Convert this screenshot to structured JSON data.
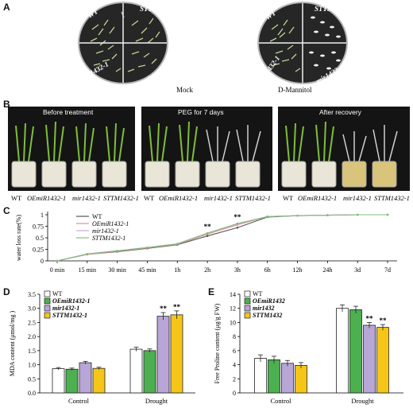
{
  "panel_a": {
    "letter": "A",
    "plates": [
      {
        "condition": "Mock",
        "labels": [
          "WT",
          "STTM1432-1",
          "OEmiR1432-1",
          "mir1432-1"
        ]
      },
      {
        "condition": "D-Mannitol",
        "labels": [
          "WT",
          "STTM1432-1",
          "OEmiR1432-1",
          "mir1432-1"
        ]
      }
    ]
  },
  "panel_b": {
    "letter": "B",
    "photos": [
      {
        "title": "Before treatment",
        "labels": [
          "WT",
          "OEmiR1432-1",
          "mir1432-1",
          "STTM1432-1"
        ]
      },
      {
        "title": "PEG for 7 days",
        "labels": [
          "WT",
          "OEmiR1432-1",
          "mir1432-1",
          "STTM1432-1"
        ]
      },
      {
        "title": "After recovery",
        "labels": [
          "WT",
          "OEmiR1432-1",
          "mir1432-1",
          "STTM1432-1"
        ]
      }
    ]
  },
  "chart_data": [
    {
      "panel": "C",
      "type": "line",
      "ylabel": "water loss rate(%)",
      "xlabel": "",
      "categories": [
        "0 min",
        "15 min",
        "30 min",
        "45 min",
        "1h",
        "2h",
        "3h",
        "6h",
        "12h",
        "24h",
        "3d",
        "7d"
      ],
      "ylim": [
        0,
        1
      ],
      "yticks": [
        "0",
        "0.25",
        "0.5",
        "0.75",
        "1"
      ],
      "series": [
        {
          "name": "WT",
          "color": "#555555",
          "values": [
            0,
            0.14,
            0.2,
            0.27,
            0.35,
            0.54,
            0.72,
            0.95,
            0.98,
            0.99,
            1.0,
            1.0
          ]
        },
        {
          "name": "OEmiR1432-1",
          "color": "#e58f8f",
          "values": [
            0,
            0.14,
            0.21,
            0.28,
            0.36,
            0.58,
            0.78,
            0.96,
            0.98,
            0.99,
            1.0,
            1.0
          ]
        },
        {
          "name": "mir1432-1",
          "color": "#c9a6d8",
          "values": [
            0,
            0.15,
            0.22,
            0.29,
            0.37,
            0.6,
            0.8,
            0.96,
            0.98,
            0.99,
            1.0,
            1.0
          ]
        },
        {
          "name": "STTM1432-1",
          "color": "#7fbf7f",
          "values": [
            0,
            0.15,
            0.22,
            0.29,
            0.37,
            0.6,
            0.81,
            0.96,
            0.98,
            0.99,
            1.0,
            1.0
          ]
        }
      ],
      "annotations": [
        {
          "category": "2h",
          "text": "**"
        },
        {
          "category": "3h",
          "text": "**"
        }
      ]
    },
    {
      "panel": "D",
      "type": "bar",
      "ylabel": "MDA content (μmol/mg )",
      "categories": [
        "Control",
        "Drought"
      ],
      "ylim": [
        0,
        3.5
      ],
      "yticks": [
        "0.0",
        "0.5",
        "1.0",
        "1.5",
        "2.0",
        "2.5",
        "3.0",
        "3.5"
      ],
      "series": [
        {
          "name": "WT",
          "color": "#ffffff",
          "values": [
            0.86,
            1.55
          ],
          "errors": [
            0.04,
            0.07
          ]
        },
        {
          "name": "OEmiR1432-1",
          "color": "#4caf50",
          "values": [
            0.84,
            1.5
          ],
          "errors": [
            0.04,
            0.06
          ]
        },
        {
          "name": "mir1432-1",
          "color": "#b7a6d6",
          "values": [
            1.07,
            2.72
          ],
          "errors": [
            0.05,
            0.13
          ]
        },
        {
          "name": "STTM1432-1",
          "color": "#f5c518",
          "values": [
            0.87,
            2.77
          ],
          "errors": [
            0.04,
            0.14
          ]
        }
      ],
      "significance": [
        {
          "category": "Drought",
          "series": 2,
          "text": "**"
        },
        {
          "category": "Drought",
          "series": 3,
          "text": "**"
        }
      ]
    },
    {
      "panel": "E",
      "type": "bar",
      "ylabel": "Free Proline content (μg/g  FW)",
      "categories": [
        "Control",
        "Drought"
      ],
      "ylim": [
        0,
        14
      ],
      "yticks": [
        "0",
        "2",
        "4",
        "6",
        "8",
        "10",
        "12",
        "14"
      ],
      "series": [
        {
          "name": "WT",
          "color": "#ffffff",
          "values": [
            4.9,
            12.0
          ],
          "errors": [
            0.5,
            0.5
          ]
        },
        {
          "name": "OEmiR1432",
          "color": "#4caf50",
          "values": [
            4.7,
            11.8
          ],
          "errors": [
            0.5,
            0.5
          ]
        },
        {
          "name": "mir1432",
          "color": "#b7a6d6",
          "values": [
            4.2,
            9.6
          ],
          "errors": [
            0.4,
            0.4
          ]
        },
        {
          "name": "STTM1432",
          "color": "#f5c518",
          "values": [
            3.9,
            9.3
          ],
          "errors": [
            0.4,
            0.4
          ]
        }
      ],
      "significance": [
        {
          "category": "Drought",
          "series": 2,
          "text": "**"
        },
        {
          "category": "Drought",
          "series": 3,
          "text": "**"
        }
      ]
    }
  ]
}
